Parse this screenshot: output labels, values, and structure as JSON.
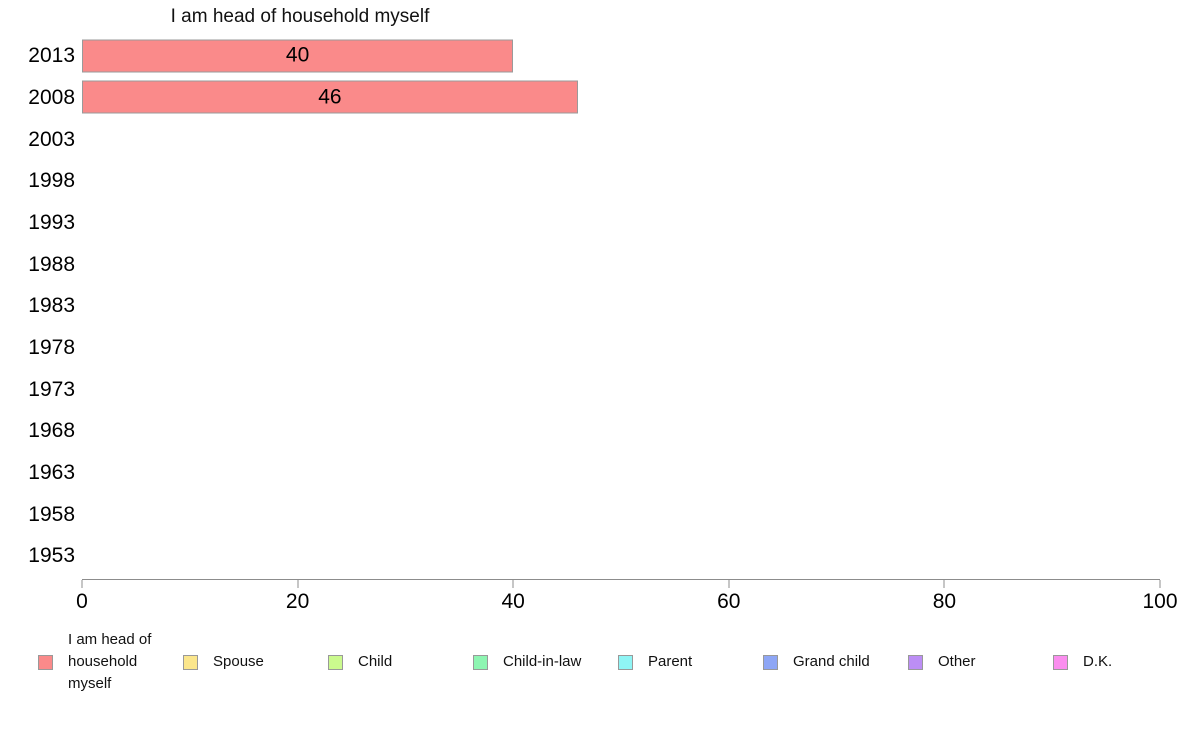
{
  "chart_data": {
    "type": "bar",
    "orientation": "horizontal",
    "title": "I am head of household myself",
    "categories": [
      "2013",
      "2008",
      "2003",
      "1998",
      "1993",
      "1988",
      "1983",
      "1978",
      "1973",
      "1968",
      "1963",
      "1958",
      "1953"
    ],
    "series": [
      {
        "name": "I am head of household myself",
        "color": "#FA8A8A",
        "values": [
          40,
          46,
          null,
          null,
          null,
          null,
          null,
          null,
          null,
          null,
          null,
          null,
          null
        ]
      },
      {
        "name": "Spouse",
        "color": "#FBE68C",
        "values": []
      },
      {
        "name": "Child",
        "color": "#CBFA8E",
        "values": []
      },
      {
        "name": "Child-in-law",
        "color": "#8EF5B2",
        "values": []
      },
      {
        "name": "Parent",
        "color": "#8FF5F5",
        "values": []
      },
      {
        "name": "Grand child",
        "color": "#8EA6F5",
        "values": []
      },
      {
        "name": "Other",
        "color": "#BC8EF5",
        "values": []
      },
      {
        "name": "D.K.",
        "color": "#FA8EEE",
        "values": []
      }
    ],
    "xlim": [
      0,
      100
    ],
    "x_ticks": [
      0,
      20,
      40,
      60,
      80,
      100
    ],
    "grid": false,
    "legend_position": "bottom",
    "bar_value_labels": true,
    "axis_color": "#8c8c8c"
  }
}
